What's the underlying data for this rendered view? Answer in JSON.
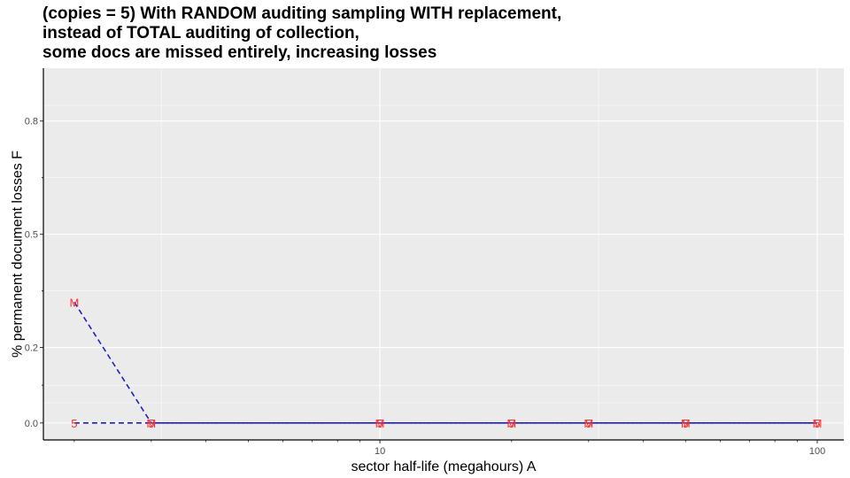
{
  "chart_data": {
    "type": "line",
    "title_lines": [
      "(copies = 5) With RANDOM auditing sampling WITH replacement,",
      "instead of TOTAL auditing of collection,",
      "some docs are missed entirely, increasing losses"
    ],
    "xlabel": "sector half-life (megahours) A",
    "ylabel": "% permanent document losses F",
    "x_scale": "log10",
    "xlim": [
      1.7,
      115
    ],
    "ylim": [
      -0.045,
      0.94
    ],
    "x_ticks": [
      {
        "value": 10,
        "label": "10"
      },
      {
        "value": 100,
        "label": "100"
      }
    ],
    "y_ticks": [
      {
        "value": 0.0,
        "label": "0.0"
      },
      {
        "value": 0.2,
        "label": "0.2"
      },
      {
        "value": 0.5,
        "label": "0.5"
      },
      {
        "value": 0.8,
        "label": "0.8"
      }
    ],
    "grid": true,
    "series": [
      {
        "label": "M",
        "line_color": "#1f1fc4",
        "label_color": "#ff3030",
        "x": [
          2,
          3,
          10,
          20,
          30,
          50,
          100
        ],
        "y": [
          0.32,
          0.0,
          0.0,
          0.0,
          0.0,
          0.0,
          0.0
        ]
      },
      {
        "label": "5",
        "line_color": "#1f1fc4",
        "label_color": "#ff3030",
        "x": [
          2,
          3,
          10,
          20,
          30,
          50,
          100
        ],
        "y": [
          0.0,
          0.0,
          0.0,
          0.0,
          0.0,
          0.0,
          0.0
        ]
      }
    ],
    "colors": {
      "panel_background": "#ebebeb",
      "grid_line": "#ffffff",
      "series_line": "#1f1fc4",
      "point_label": "#ff3030"
    }
  }
}
